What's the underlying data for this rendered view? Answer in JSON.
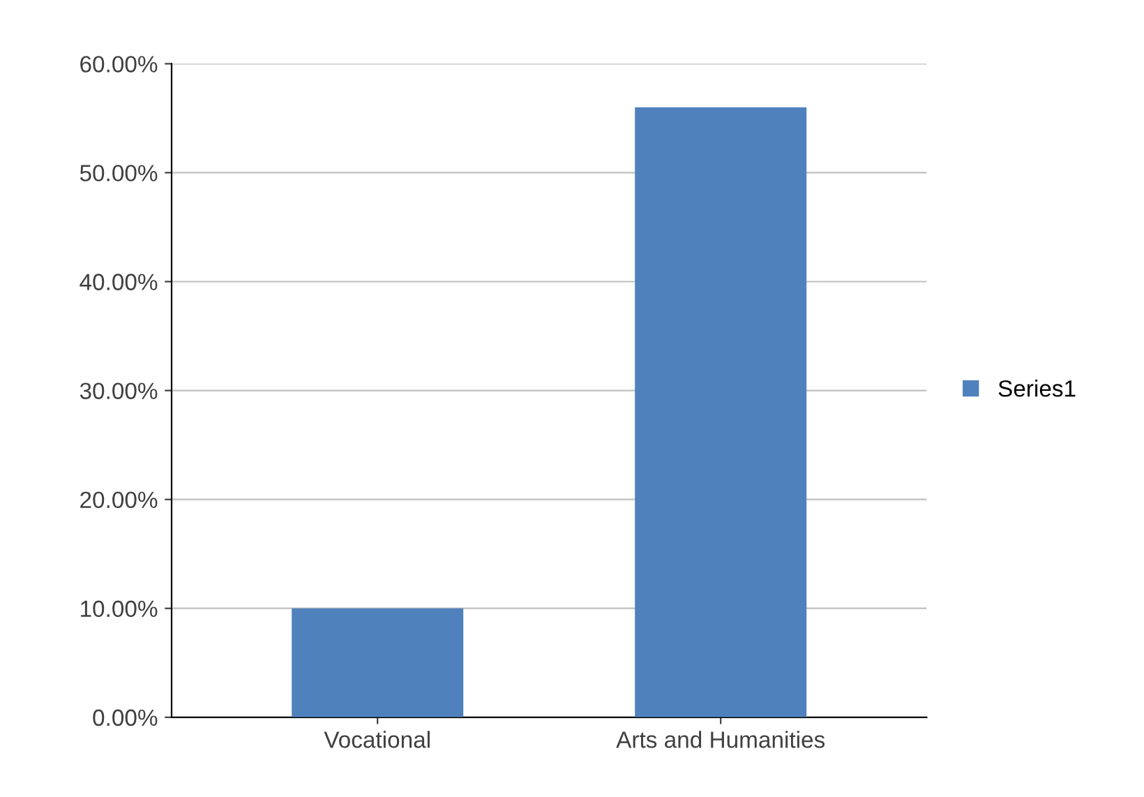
{
  "chart_data": {
    "type": "bar",
    "categories": [
      "Vocational",
      "Arts and Humanities"
    ],
    "series": [
      {
        "name": "Series1",
        "color": "#4f81bd",
        "values": [
          10,
          56
        ]
      }
    ],
    "ylim": [
      0,
      60
    ],
    "yticks": [
      {
        "value": 0,
        "label": "0.00%"
      },
      {
        "value": 10,
        "label": "10.00%"
      },
      {
        "value": 20,
        "label": "20.00%"
      },
      {
        "value": 30,
        "label": "30.00%"
      },
      {
        "value": 40,
        "label": "40.00%"
      },
      {
        "value": 50,
        "label": "50.00%"
      },
      {
        "value": 60,
        "label": "60.00%"
      }
    ],
    "grid": "y",
    "legend": "right"
  }
}
